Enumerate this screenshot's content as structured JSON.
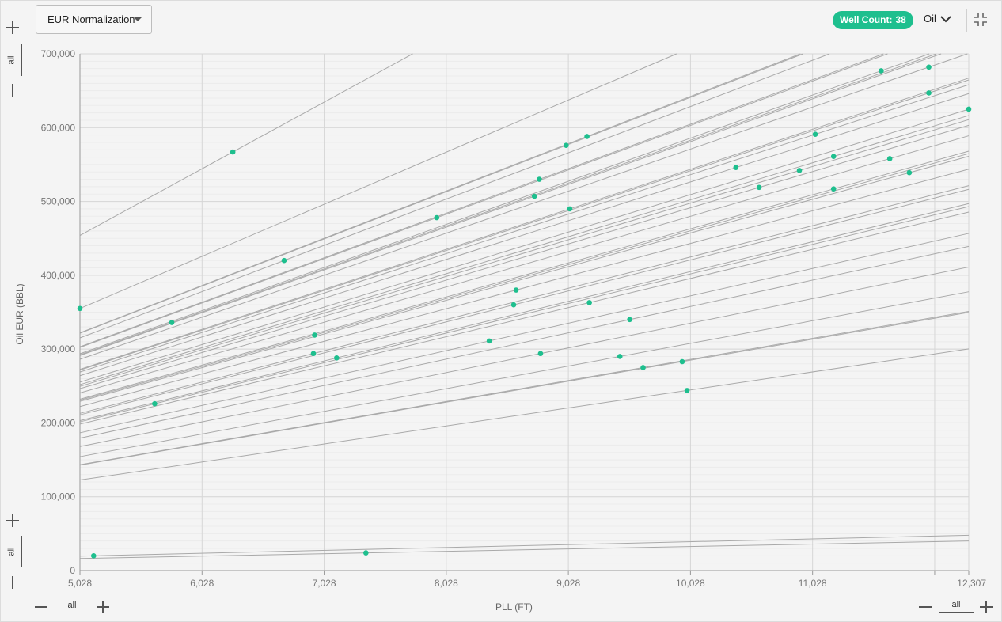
{
  "header": {
    "dropdown_label": "EUR Normalization",
    "well_count_label": "Well Count:",
    "well_count_value": "38",
    "product": "Oil"
  },
  "controls": {
    "y_top_filter": "all",
    "y_bottom_filter": "all",
    "x_left_filter": "all",
    "x_right_filter": "all"
  },
  "colors": {
    "accent": "#1ebf8e",
    "line": "#a9a9a9",
    "grid_major": "#d6d6d6",
    "grid_minor": "#ebebeb"
  },
  "chart_data": {
    "type": "scatter",
    "xlabel": "PLL (FT)",
    "ylabel": "Oil EUR (BBL)",
    "xlim": [
      5028,
      12307
    ],
    "ylim": [
      0,
      700000
    ],
    "x_ticks": [
      "5,028",
      "6,028",
      "7,028",
      "8,028",
      "9,028",
      "10,028",
      "11,028",
      "12,307"
    ],
    "y_ticks": [
      "0",
      "100,000",
      "200,000",
      "300,000",
      "400,000",
      "500,000",
      "600,000",
      "700,000"
    ],
    "grid": true,
    "points": [
      {
        "x": 5028,
        "y": 355000
      },
      {
        "x": 5140,
        "y": 20000
      },
      {
        "x": 5640,
        "y": 226000
      },
      {
        "x": 5780,
        "y": 336000
      },
      {
        "x": 6280,
        "y": 567000
      },
      {
        "x": 6700,
        "y": 420000
      },
      {
        "x": 6940,
        "y": 294000
      },
      {
        "x": 6950,
        "y": 319000
      },
      {
        "x": 7130,
        "y": 288000
      },
      {
        "x": 7370,
        "y": 24000
      },
      {
        "x": 7950,
        "y": 478000
      },
      {
        "x": 8380,
        "y": 311000
      },
      {
        "x": 8580,
        "y": 360000
      },
      {
        "x": 8600,
        "y": 380000
      },
      {
        "x": 8750,
        "y": 507000
      },
      {
        "x": 8790,
        "y": 530000
      },
      {
        "x": 8800,
        "y": 294000
      },
      {
        "x": 9010,
        "y": 576000
      },
      {
        "x": 9040,
        "y": 490000
      },
      {
        "x": 9180,
        "y": 588000
      },
      {
        "x": 9200,
        "y": 363000
      },
      {
        "x": 9450,
        "y": 290000
      },
      {
        "x": 9530,
        "y": 340000
      },
      {
        "x": 9640,
        "y": 275000
      },
      {
        "x": 9960,
        "y": 283000
      },
      {
        "x": 10000,
        "y": 244000
      },
      {
        "x": 10400,
        "y": 546000
      },
      {
        "x": 10590,
        "y": 519000
      },
      {
        "x": 10920,
        "y": 542000
      },
      {
        "x": 11050,
        "y": 591000
      },
      {
        "x": 11200,
        "y": 561000
      },
      {
        "x": 11200,
        "y": 517000
      },
      {
        "x": 11590,
        "y": 677000
      },
      {
        "x": 11660,
        "y": 558000
      },
      {
        "x": 11820,
        "y": 539000
      },
      {
        "x": 11980,
        "y": 682000
      },
      {
        "x": 11980,
        "y": 647000
      },
      {
        "x": 12307,
        "y": 625000
      }
    ]
  }
}
